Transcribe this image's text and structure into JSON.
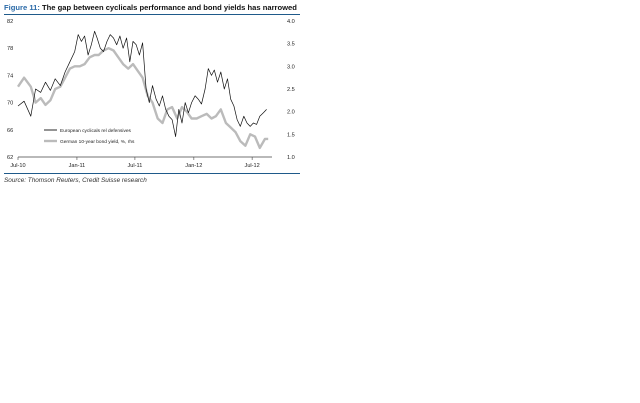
{
  "figure": {
    "number_label": "Figure 11:",
    "title": "The gap between cyclicals performance and bond yields has narrowed",
    "source": "Source: Thomson Reuters, Credit Suisse research"
  },
  "chart_data": {
    "type": "line",
    "title": "The gap between cyclicals performance and bond yields has narrowed",
    "x_tick_labels": [
      "Jul-10",
      "Jan-11",
      "Jul-11",
      "Jan-12",
      "Jul-12"
    ],
    "x_tick_dates": [
      "2010-07",
      "2011-01",
      "2011-07",
      "2012-01",
      "2012-07"
    ],
    "xlim": [
      "2010-07",
      "2012-09"
    ],
    "y_left": {
      "ylim": [
        62,
        82
      ],
      "ticks": [
        62,
        66,
        70,
        74,
        78,
        82
      ]
    },
    "y_right": {
      "ylim": [
        1.0,
        4.0
      ],
      "ticks": [
        "1.0",
        "1.5",
        "2.0",
        "2.5",
        "3.0",
        "3.5",
        "4.0"
      ]
    },
    "grid": false,
    "legend_position": "lower-left",
    "series": [
      {
        "name": "European cyclicals rel defensives",
        "axis": "left",
        "color": "#111111",
        "x": [
          "2010-07-01",
          "2010-07-20",
          "2010-08-10",
          "2010-08-25",
          "2010-09-10",
          "2010-09-25",
          "2010-10-10",
          "2010-10-25",
          "2010-11-10",
          "2010-11-25",
          "2010-12-10",
          "2010-12-25",
          "2011-01-05",
          "2011-01-15",
          "2011-01-25",
          "2011-02-05",
          "2011-02-15",
          "2011-02-25",
          "2011-03-05",
          "2011-03-15",
          "2011-03-25",
          "2011-04-05",
          "2011-04-15",
          "2011-04-25",
          "2011-05-05",
          "2011-05-15",
          "2011-05-25",
          "2011-06-05",
          "2011-06-15",
          "2011-06-25",
          "2011-07-05",
          "2011-07-15",
          "2011-07-25",
          "2011-08-05",
          "2011-08-15",
          "2011-08-25",
          "2011-09-05",
          "2011-09-15",
          "2011-09-25",
          "2011-10-05",
          "2011-10-15",
          "2011-10-25",
          "2011-11-05",
          "2011-11-15",
          "2011-11-25",
          "2011-12-05",
          "2011-12-15",
          "2011-12-25",
          "2012-01-05",
          "2012-01-15",
          "2012-01-25",
          "2012-02-05",
          "2012-02-15",
          "2012-02-25",
          "2012-03-05",
          "2012-03-15",
          "2012-03-25",
          "2012-04-05",
          "2012-04-15",
          "2012-04-25",
          "2012-05-05",
          "2012-05-15",
          "2012-05-25",
          "2012-06-05",
          "2012-06-15",
          "2012-06-25",
          "2012-07-05",
          "2012-07-15",
          "2012-07-25",
          "2012-08-05",
          "2012-08-15"
        ],
        "values": [
          69.5,
          70.2,
          68.0,
          72.0,
          71.5,
          73.0,
          71.8,
          73.5,
          72.5,
          74.5,
          76.0,
          77.5,
          80.0,
          79.0,
          79.8,
          77.0,
          78.5,
          80.5,
          79.5,
          78.0,
          77.5,
          79.0,
          80.0,
          79.5,
          78.5,
          79.8,
          78.0,
          79.5,
          76.0,
          79.0,
          78.5,
          77.0,
          78.8,
          72.0,
          70.0,
          72.5,
          70.5,
          69.5,
          71.0,
          69.0,
          68.0,
          67.5,
          65.0,
          69.0,
          67.0,
          70.0,
          68.5,
          70.0,
          71.0,
          70.5,
          69.8,
          72.0,
          75.0,
          74.0,
          74.8,
          73.0,
          74.5,
          72.0,
          73.5,
          70.5,
          69.5,
          67.5,
          66.5,
          68.0,
          67.0,
          66.5,
          67.0,
          66.8,
          68.0,
          68.5,
          69.0
        ]
      },
      {
        "name": "German 10-year bond yield, %, rhs",
        "axis": "right",
        "color": "#bbbbbb",
        "x": [
          "2010-07-01",
          "2010-07-20",
          "2010-08-10",
          "2010-08-25",
          "2010-09-10",
          "2010-09-25",
          "2010-10-10",
          "2010-10-25",
          "2010-11-10",
          "2010-11-25",
          "2010-12-10",
          "2010-12-25",
          "2011-01-10",
          "2011-01-25",
          "2011-02-10",
          "2011-02-25",
          "2011-03-10",
          "2011-03-25",
          "2011-04-10",
          "2011-04-25",
          "2011-05-10",
          "2011-05-25",
          "2011-06-10",
          "2011-06-25",
          "2011-07-10",
          "2011-07-25",
          "2011-08-10",
          "2011-08-25",
          "2011-09-10",
          "2011-09-25",
          "2011-10-10",
          "2011-10-25",
          "2011-11-10",
          "2011-11-25",
          "2011-12-10",
          "2011-12-25",
          "2012-01-10",
          "2012-01-25",
          "2012-02-10",
          "2012-02-25",
          "2012-03-10",
          "2012-03-25",
          "2012-04-10",
          "2012-04-25",
          "2012-05-10",
          "2012-05-25",
          "2012-06-10",
          "2012-06-25",
          "2012-07-10",
          "2012-07-25",
          "2012-08-10",
          "2012-08-20"
        ],
        "values": [
          2.55,
          2.75,
          2.55,
          2.2,
          2.3,
          2.15,
          2.25,
          2.5,
          2.55,
          2.75,
          2.95,
          3.0,
          3.0,
          3.05,
          3.2,
          3.25,
          3.25,
          3.35,
          3.4,
          3.35,
          3.2,
          3.05,
          2.95,
          3.05,
          2.9,
          2.75,
          2.35,
          2.2,
          1.85,
          1.75,
          2.05,
          2.1,
          1.85,
          2.1,
          2.0,
          1.85,
          1.85,
          1.9,
          1.95,
          1.85,
          1.9,
          2.05,
          1.75,
          1.65,
          1.55,
          1.35,
          1.25,
          1.5,
          1.45,
          1.2,
          1.4,
          1.4
        ]
      }
    ]
  }
}
